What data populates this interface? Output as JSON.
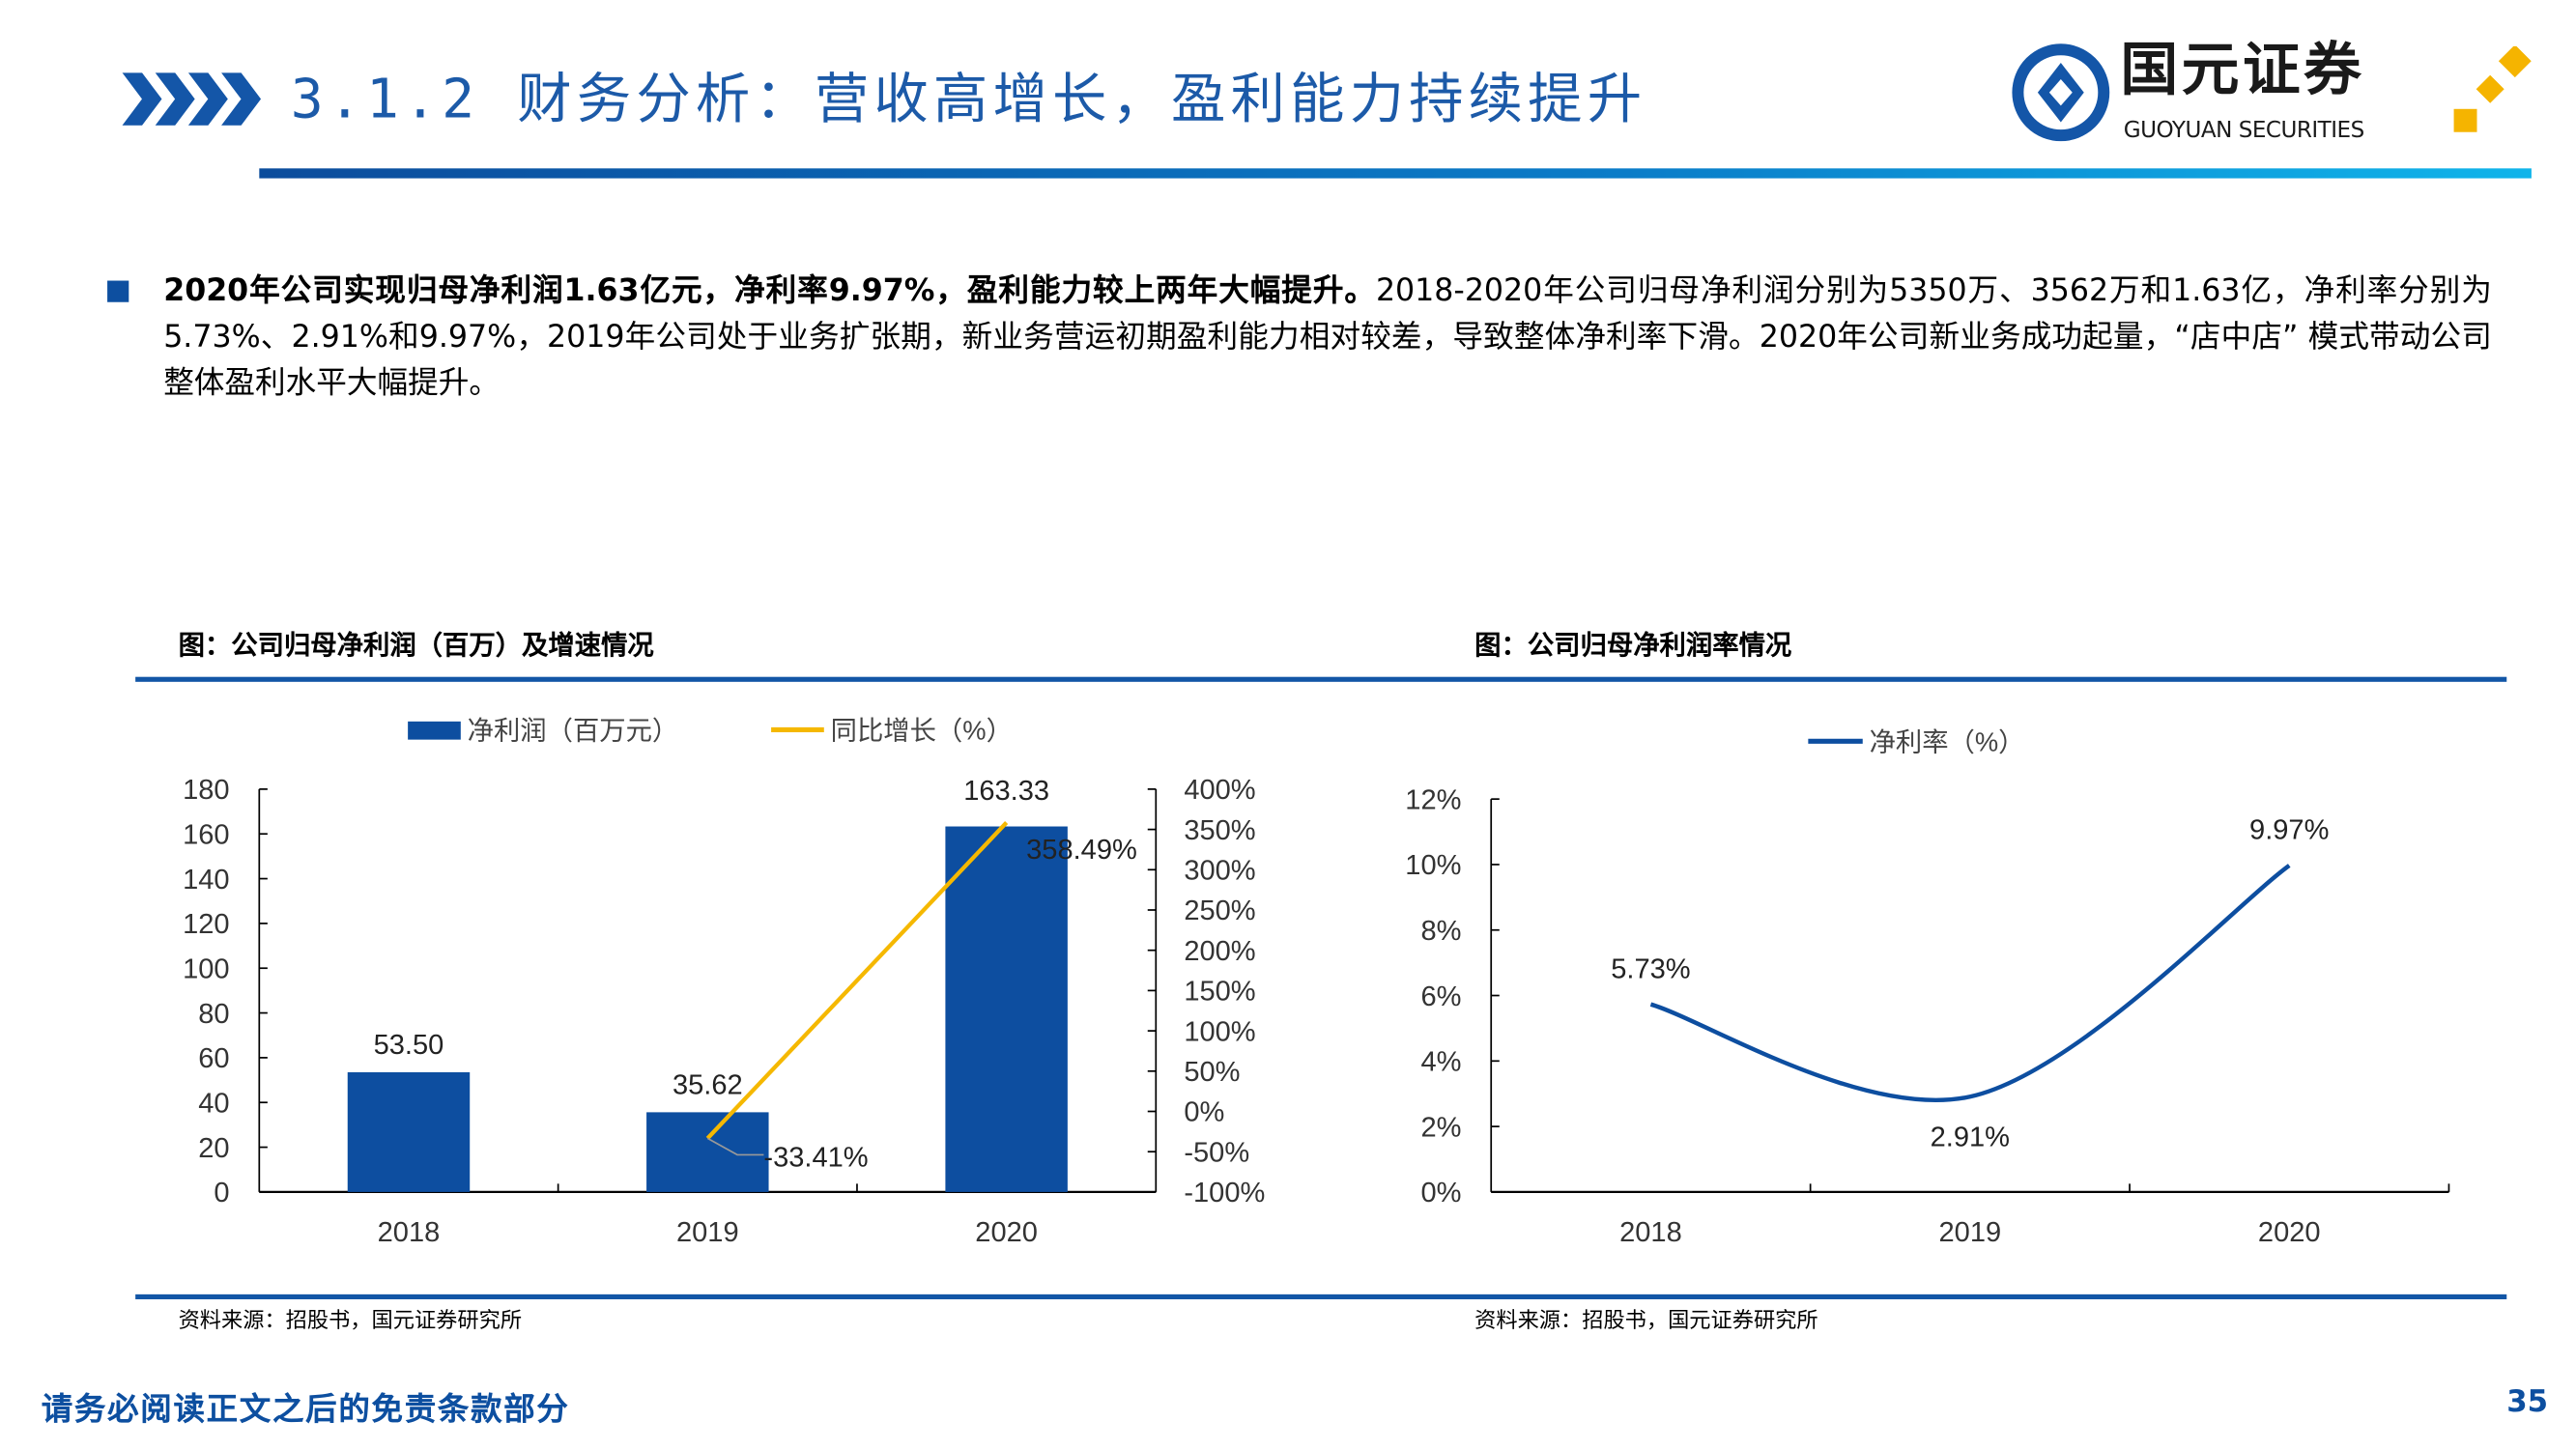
{
  "header": {
    "title": "3.1.2 财务分析：营收高增长，盈利能力持续提升",
    "logo_cn": "国元证券",
    "logo_en": "GUOYUAN SECURITIES",
    "accent": "#0d4fa0"
  },
  "body": {
    "bold_lead": "2020年公司实现归母净利润1.63亿元，净利率9.97%，盈利能力较上两年大幅提升。",
    "text": "2018-2020年公司归母净利润分别为5350万、3562万和1.63亿，净利率分别为5.73%、2.91%和9.97%，2019年公司处于业务扩张期，新业务营运初期盈利能力相对较差，导致整体净利率下滑。2020年公司新业务成功起量，“店中店” 模式带动公司整体盈利水平大幅提升。"
  },
  "chart_data": [
    {
      "type": "bar",
      "title": "图：公司归母净利润（百万）及增速情况",
      "categories": [
        "2018",
        "2019",
        "2020"
      ],
      "series": [
        {
          "name": "净利润（百万元）",
          "type": "bar",
          "axis": "left",
          "values": [
            53.5,
            35.62,
            163.33
          ],
          "labels": [
            "53.50",
            "35.62",
            "163.33"
          ],
          "color": "#0d4ea0"
        },
        {
          "name": "同比增长（%）",
          "type": "line",
          "axis": "right",
          "values": [
            null,
            -33.41,
            358.49
          ],
          "labels": [
            null,
            "-33.41%",
            "358.49%"
          ],
          "color": "#f5b800"
        }
      ],
      "ylim": [
        0,
        180
      ],
      "yticks": [
        "0",
        "20",
        "40",
        "60",
        "80",
        "100",
        "120",
        "140",
        "160",
        "180"
      ],
      "y2lim": [
        -100,
        400
      ],
      "y2ticks": [
        "-100%",
        "-50%",
        "0%",
        "50%",
        "100%",
        "150%",
        "200%",
        "250%",
        "300%",
        "350%",
        "400%"
      ],
      "legend": "top",
      "grid": false,
      "source": "资料来源：招股书，国元证券研究所"
    },
    {
      "type": "line",
      "title": "图：公司归母净利润率情况",
      "categories": [
        "2018",
        "2019",
        "2020"
      ],
      "series": [
        {
          "name": "净利率（%）",
          "values": [
            5.73,
            2.91,
            9.97
          ],
          "labels": [
            "5.73%",
            "2.91%",
            "9.97%"
          ],
          "color": "#0d4ea0",
          "smooth": true
        }
      ],
      "ylim": [
        0,
        12
      ],
      "yticks": [
        "0%",
        "2%",
        "4%",
        "6%",
        "8%",
        "10%",
        "12%"
      ],
      "legend": "top",
      "grid": false,
      "source": "资料来源：招股书，国元证券研究所"
    }
  ],
  "footer": {
    "disclaimer": "请务必阅读正文之后的免责条款部分",
    "page": "35"
  }
}
